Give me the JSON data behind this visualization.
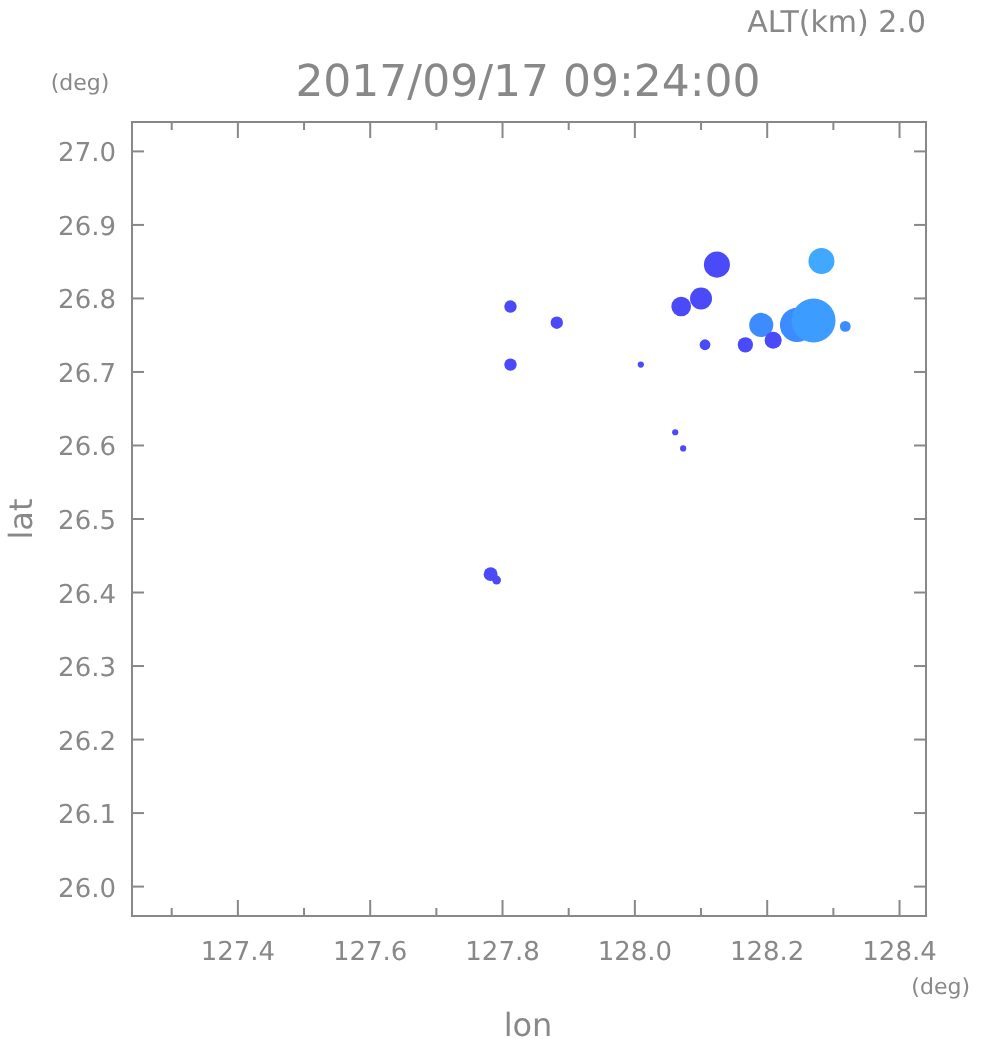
{
  "chart_data": {
    "type": "bubble",
    "title": "2017/09/17 09:24:00",
    "subtitle": "ALT(km) 2.0",
    "xlabel": "lon",
    "ylabel": "lat",
    "annotations": [
      "(deg)",
      "(deg)"
    ],
    "x": [
      127.812,
      127.882,
      127.812,
      128.009,
      128.061,
      128.073,
      128.124,
      128.07,
      128.1,
      128.106,
      128.167,
      128.191,
      128.209,
      128.245,
      128.27,
      128.282,
      128.318,
      127.782,
      127.791
    ],
    "values": [
      26.789,
      26.767,
      26.71,
      26.71,
      26.618,
      26.596,
      26.846,
      26.789,
      26.8,
      26.737,
      26.737,
      26.764,
      26.743,
      26.764,
      26.77,
      26.851,
      26.762,
      26.425,
      26.417
    ],
    "sizes": [
      0.08,
      0.08,
      0.08,
      0.02,
      0.02,
      0.02,
      0.35,
      0.2,
      0.25,
      0.06,
      0.12,
      0.3,
      0.15,
      0.6,
      1,
      0.35,
      0.06,
      0.1,
      0.04
    ],
    "colors": [
      "#4a4af8",
      "#4a4af8",
      "#4a4af8",
      "#4a4af8",
      "#4a4af8",
      "#4a4af8",
      "#4a4af8",
      "#4a4af8",
      "#4a4af8",
      "#4a4af8",
      "#4a4af8",
      "#3c8cff",
      "#4a4af8",
      "#3c8cff",
      "#3c9cff",
      "#40a8ff",
      "#3c8cff",
      "#4a4af8",
      "#4a4af8"
    ],
    "xlim": [
      127.24,
      128.44
    ],
    "ylim": [
      25.96,
      27.04
    ],
    "xticks": [
      {
        "value": 127.3,
        "label": null
      },
      127.4,
      {
        "value": 127.5,
        "label": null
      },
      127.6,
      {
        "value": 127.7,
        "label": null
      },
      127.8,
      {
        "value": 127.9,
        "label": null
      },
      {
        "value": 128,
        "label": "128.0"
      },
      {
        "value": 128.1,
        "label": null
      },
      128.2,
      {
        "value": 128.3,
        "label": null
      },
      128.4
    ],
    "yticks": [
      {
        "value": 26,
        "label": "26.0"
      },
      26.1,
      26.2,
      26.3,
      26.4,
      26.5,
      26.6,
      26.7,
      26.8,
      26.9,
      {
        "value": 27,
        "label": "27.0"
      }
    ],
    "grid": false
  }
}
